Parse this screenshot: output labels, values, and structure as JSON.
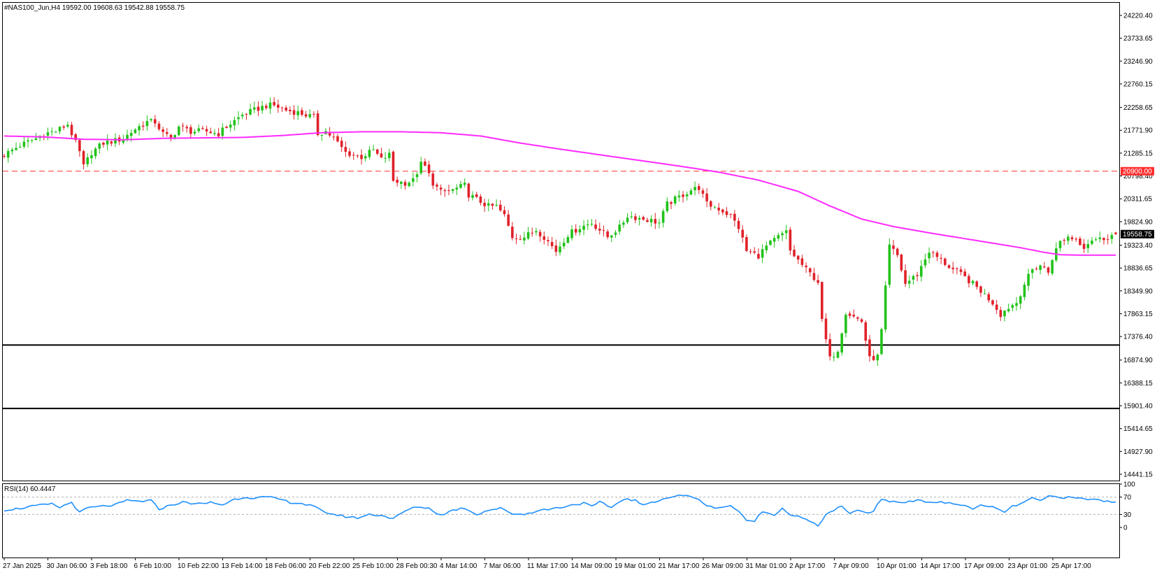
{
  "header": {
    "symbol_info": "#NAS100_Jun,H4  19592.00 19608.63 19542.88 19558.75"
  },
  "colors": {
    "bull": "#22c21a",
    "bear": "#e0212a",
    "ma": "#ff2bff",
    "rsi": "#1e90ff",
    "resistance": "#ff3030",
    "support": "#000000"
  },
  "chart_data": [
    {
      "type": "candlestick",
      "title": "#NAS100_Jun,H4",
      "timeframe": "H4",
      "last_bar": {
        "open": 19592.0,
        "high": 19608.63,
        "low": 19542.88,
        "close": 19558.75
      },
      "ylim": [
        14441.15,
        24220.4
      ],
      "y_ticks": [
        "24220.40",
        "23733.65",
        "23246.90",
        "22760.15",
        "22258.65",
        "21771.90",
        "21285.15",
        "20798.40",
        "20311.65",
        "19824.90",
        "19323.40",
        "18836.65",
        "18349.90",
        "17863.15",
        "17376.40",
        "16874.90",
        "16388.15",
        "15901.40",
        "15414.65",
        "14927.90",
        "14441.15"
      ],
      "x_ticks": [
        "27 Jan 2025",
        "30 Jan 06:00",
        "3 Feb 18:00",
        "6 Feb 10:00",
        "10 Feb 22:00",
        "13 Feb 14:00",
        "18 Feb 06:00",
        "20 Feb 22:00",
        "25 Feb 10:00",
        "28 Feb 00:30",
        "4 Mar 14:00",
        "7 Mar 06:00",
        "11 Mar 17:00",
        "14 Mar 09:00",
        "19 Mar 01:00",
        "21 Mar 17:00",
        "26 Mar 09:00",
        "31 Mar 01:00",
        "2 Apr 17:00",
        "7 Apr 09:00",
        "10 Apr 01:00",
        "14 Apr 17:00",
        "17 Apr 09:00",
        "23 Apr 01:00",
        "25 Apr 17:00"
      ],
      "current_price_label": "19558.75",
      "current_price": 19558.75,
      "resistance_label": "20900.00",
      "resistance_level": 20900.0,
      "support_levels": [
        17195,
        15845
      ],
      "close_path": [
        [
          0,
          21250
        ],
        [
          4,
          21450
        ],
        [
          8,
          21600
        ],
        [
          10,
          21700
        ],
        [
          13,
          21750
        ],
        [
          16,
          21900
        ],
        [
          17,
          21700
        ],
        [
          19,
          21300
        ],
        [
          20,
          21000
        ],
        [
          22,
          21300
        ],
        [
          25,
          21500
        ],
        [
          28,
          21550
        ],
        [
          30,
          21600
        ],
        [
          33,
          21800
        ],
        [
          36,
          21950
        ],
        [
          38,
          21950
        ],
        [
          40,
          21700
        ],
        [
          42,
          21600
        ],
        [
          44,
          21850
        ],
        [
          47,
          21750
        ],
        [
          51,
          21750
        ],
        [
          54,
          21700
        ],
        [
          56,
          21850
        ],
        [
          60,
          22100
        ],
        [
          63,
          22200
        ],
        [
          66,
          22300
        ],
        [
          68,
          22300
        ],
        [
          71,
          22200
        ],
        [
          74,
          22150
        ],
        [
          76,
          22100
        ],
        [
          78,
          22050
        ],
        [
          79,
          21700
        ],
        [
          81,
          21750
        ],
        [
          83,
          21600
        ],
        [
          86,
          21300
        ],
        [
          90,
          21200
        ],
        [
          93,
          21350
        ],
        [
          95,
          21150
        ],
        [
          97,
          21250
        ],
        [
          98,
          20700
        ],
        [
          101,
          20650
        ],
        [
          103,
          20700
        ],
        [
          105,
          21050
        ],
        [
          106,
          21000
        ],
        [
          108,
          20650
        ],
        [
          110,
          20450
        ],
        [
          113,
          20500
        ],
        [
          116,
          20600
        ],
        [
          117,
          20400
        ],
        [
          120,
          20250
        ],
        [
          122,
          20150
        ],
        [
          124,
          20150
        ],
        [
          126,
          19950
        ],
        [
          128,
          19500
        ],
        [
          131,
          19500
        ],
        [
          134,
          19650
        ],
        [
          136,
          19500
        ],
        [
          139,
          19200
        ],
        [
          142,
          19550
        ],
        [
          145,
          19700
        ],
        [
          148,
          19800
        ],
        [
          150,
          19650
        ],
        [
          152,
          19500
        ],
        [
          155,
          19700
        ],
        [
          157,
          19950
        ],
        [
          160,
          19900
        ],
        [
          163,
          19850
        ],
        [
          165,
          19800
        ],
        [
          167,
          20200
        ],
        [
          170,
          20350
        ],
        [
          173,
          20500
        ],
        [
          175,
          20550
        ],
        [
          177,
          20200
        ],
        [
          180,
          20100
        ],
        [
          183,
          19950
        ],
        [
          185,
          19700
        ],
        [
          187,
          19200
        ],
        [
          190,
          19100
        ],
        [
          192,
          19300
        ],
        [
          195,
          19500
        ],
        [
          197,
          19600
        ],
        [
          198,
          19200
        ],
        [
          200,
          19000
        ],
        [
          202,
          18800
        ],
        [
          205,
          18550
        ],
        [
          206,
          17700
        ],
        [
          208,
          16900
        ],
        [
          210,
          17100
        ],
        [
          212,
          17900
        ],
        [
          214,
          17800
        ],
        [
          216,
          17700
        ],
        [
          218,
          16900
        ],
        [
          220,
          16950
        ],
        [
          221,
          17500
        ],
        [
          223,
          19300
        ],
        [
          225,
          19100
        ],
        [
          227,
          18500
        ],
        [
          230,
          18700
        ],
        [
          233,
          19200
        ],
        [
          236,
          19000
        ],
        [
          239,
          18800
        ],
        [
          241,
          18700
        ],
        [
          244,
          18500
        ],
        [
          246,
          18350
        ],
        [
          249,
          18100
        ],
        [
          251,
          17850
        ],
        [
          253,
          18000
        ],
        [
          255,
          18100
        ],
        [
          257,
          18500
        ],
        [
          259,
          18800
        ],
        [
          261,
          18900
        ],
        [
          263,
          18750
        ],
        [
          264,
          19050
        ],
        [
          266,
          19400
        ],
        [
          268,
          19500
        ],
        [
          270,
          19450
        ],
        [
          272,
          19300
        ],
        [
          274,
          19450
        ],
        [
          276,
          19450
        ],
        [
          278,
          19500
        ],
        [
          280,
          19560
        ]
      ],
      "ma_path": [
        [
          0,
          21650
        ],
        [
          10,
          21630
        ],
        [
          20,
          21580
        ],
        [
          30,
          21570
        ],
        [
          40,
          21600
        ],
        [
          50,
          21610
        ],
        [
          60,
          21620
        ],
        [
          70,
          21660
        ],
        [
          80,
          21720
        ],
        [
          90,
          21740
        ],
        [
          100,
          21740
        ],
        [
          110,
          21720
        ],
        [
          120,
          21650
        ],
        [
          130,
          21500
        ],
        [
          140,
          21370
        ],
        [
          150,
          21250
        ],
        [
          160,
          21130
        ],
        [
          170,
          21010
        ],
        [
          180,
          20880
        ],
        [
          190,
          20710
        ],
        [
          200,
          20470
        ],
        [
          208,
          20160
        ],
        [
          216,
          19880
        ],
        [
          224,
          19720
        ],
        [
          232,
          19600
        ],
        [
          240,
          19490
        ],
        [
          248,
          19380
        ],
        [
          256,
          19270
        ],
        [
          262,
          19170
        ],
        [
          266,
          19120
        ],
        [
          272,
          19110
        ],
        [
          280,
          19110
        ]
      ]
    },
    {
      "type": "line",
      "title": "RSI(14) 60.4447",
      "ylim": [
        0,
        100
      ],
      "y_ticks": [
        "100",
        "70",
        "30",
        "0"
      ],
      "levels": [
        70,
        30
      ],
      "rsi_path": [
        [
          0,
          40
        ],
        [
          4,
          44
        ],
        [
          8,
          50
        ],
        [
          12,
          54
        ],
        [
          14,
          46
        ],
        [
          17,
          58
        ],
        [
          19,
          34
        ],
        [
          21,
          45
        ],
        [
          24,
          48
        ],
        [
          28,
          52
        ],
        [
          31,
          62
        ],
        [
          34,
          60
        ],
        [
          37,
          62
        ],
        [
          39,
          42
        ],
        [
          42,
          52
        ],
        [
          45,
          58
        ],
        [
          48,
          55
        ],
        [
          50,
          54
        ],
        [
          52,
          58
        ],
        [
          55,
          52
        ],
        [
          58,
          65
        ],
        [
          61,
          70
        ],
        [
          63,
          68
        ],
        [
          66,
          70
        ],
        [
          69,
          66
        ],
        [
          72,
          58
        ],
        [
          75,
          55
        ],
        [
          78,
          48
        ],
        [
          80,
          38
        ],
        [
          83,
          30
        ],
        [
          86,
          25
        ],
        [
          89,
          22
        ],
        [
          92,
          30
        ],
        [
          95,
          28
        ],
        [
          98,
          20
        ],
        [
          101,
          38
        ],
        [
          104,
          48
        ],
        [
          107,
          44
        ],
        [
          110,
          28
        ],
        [
          113,
          40
        ],
        [
          116,
          45
        ],
        [
          119,
          30
        ],
        [
          122,
          40
        ],
        [
          125,
          44
        ],
        [
          128,
          32
        ],
        [
          131,
          30
        ],
        [
          134,
          38
        ],
        [
          137,
          42
        ],
        [
          140,
          46
        ],
        [
          143,
          52
        ],
        [
          146,
          56
        ],
        [
          148,
          48
        ],
        [
          150,
          58
        ],
        [
          153,
          46
        ],
        [
          156,
          66
        ],
        [
          159,
          62
        ],
        [
          161,
          50
        ],
        [
          163,
          58
        ],
        [
          166,
          66
        ],
        [
          169,
          72
        ],
        [
          171,
          74
        ],
        [
          173,
          70
        ],
        [
          175,
          66
        ],
        [
          177,
          48
        ],
        [
          180,
          46
        ],
        [
          183,
          50
        ],
        [
          185,
          38
        ],
        [
          187,
          14
        ],
        [
          189,
          16
        ],
        [
          191,
          36
        ],
        [
          194,
          30
        ],
        [
          196,
          44
        ],
        [
          198,
          30
        ],
        [
          200,
          25
        ],
        [
          202,
          18
        ],
        [
          204,
          8
        ],
        [
          205,
          4
        ],
        [
          207,
          30
        ],
        [
          209,
          40
        ],
        [
          211,
          48
        ],
        [
          213,
          30
        ],
        [
          215,
          42
        ],
        [
          217,
          32
        ],
        [
          219,
          38
        ],
        [
          221,
          66
        ],
        [
          223,
          60
        ],
        [
          226,
          58
        ],
        [
          229,
          62
        ],
        [
          232,
          60
        ],
        [
          235,
          58
        ],
        [
          238,
          56
        ],
        [
          241,
          52
        ],
        [
          244,
          44
        ],
        [
          246,
          50
        ],
        [
          249,
          46
        ],
        [
          252,
          36
        ],
        [
          254,
          48
        ],
        [
          257,
          58
        ],
        [
          259,
          68
        ],
        [
          261,
          60
        ],
        [
          263,
          72
        ],
        [
          266,
          70
        ],
        [
          269,
          68
        ],
        [
          272,
          66
        ],
        [
          275,
          64
        ],
        [
          278,
          60
        ],
        [
          280,
          60
        ]
      ]
    }
  ]
}
